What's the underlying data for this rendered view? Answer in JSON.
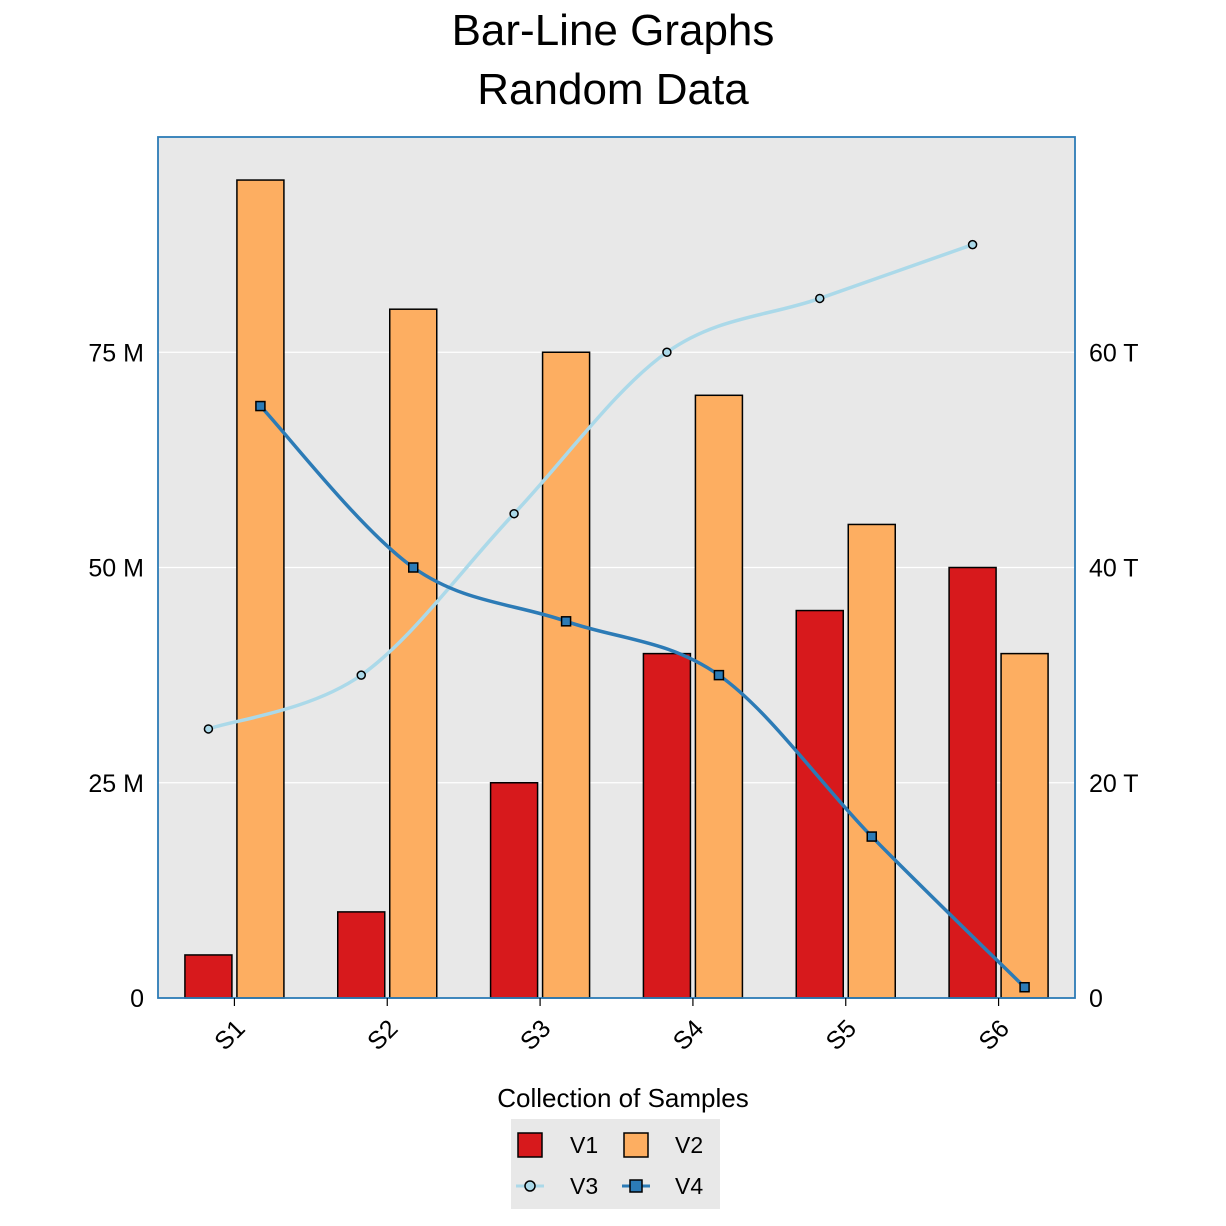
{
  "chart_data": {
    "type": "bar",
    "title": "Bar-Line Graphs",
    "subtitle": "Random Data",
    "xlabel": "Collection of Samples",
    "categories": [
      "S1",
      "S2",
      "S3",
      "S4",
      "S5",
      "S6"
    ],
    "y_left": {
      "ylim": [
        0,
        100
      ],
      "ticks": [
        0,
        25,
        50,
        75
      ],
      "tick_labels": [
        "0",
        "25 M",
        "50 M",
        "75 M"
      ]
    },
    "y_right": {
      "ylim": [
        0,
        80
      ],
      "ticks": [
        0,
        20,
        40,
        60
      ],
      "tick_labels": [
        "0",
        "20 T",
        "40 T",
        "60 T"
      ]
    },
    "series": [
      {
        "name": "V1",
        "type": "bar",
        "axis": "left",
        "color": "#d7191c",
        "values": [
          5,
          10,
          25,
          40,
          45,
          50
        ]
      },
      {
        "name": "V2",
        "type": "bar",
        "axis": "left",
        "color": "#fdae61",
        "values": [
          95,
          80,
          75,
          70,
          55,
          40
        ]
      },
      {
        "name": "V3",
        "type": "line",
        "axis": "right",
        "marker": "circle",
        "color": "#abd9e9",
        "values": [
          25,
          30,
          45,
          60,
          65,
          70
        ]
      },
      {
        "name": "V4",
        "type": "line",
        "axis": "right",
        "marker": "square",
        "color": "#2c7bb6",
        "values": [
          55,
          40,
          35,
          30,
          15,
          1
        ]
      }
    ],
    "grid": true,
    "legend_position": "bottom",
    "panel_background": "#e8e8e8",
    "frame_color": "#2c7bb6"
  }
}
